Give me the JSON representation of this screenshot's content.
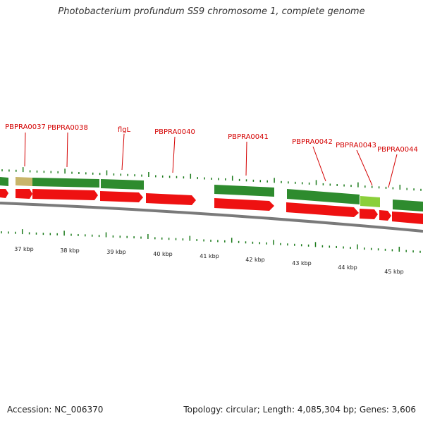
{
  "title": "Photobacterium profundum SS9 chromosome 1, complete genome",
  "footer": {
    "accession": "Accession: NC_006370",
    "summary": "Topology: circular; Length: 4,085,304 bp; Genes: 3,606"
  },
  "colors": {
    "gene_label": "#d40000",
    "feature_green": "#2e8b2e",
    "feature_red": "#ee1111",
    "backbone": "#888888",
    "tick": "#1a7a1a"
  },
  "gene_labels": [
    "PBPRA0037",
    "PBPRA0038",
    "flgL",
    "PBPRA0040",
    "PBPRA0041",
    "PBPRA0042",
    "PBPRA0043",
    "PBPRA0044"
  ],
  "kbp_labels": [
    "37 kbp",
    "38 kbp",
    "39 kbp",
    "40 kbp",
    "41 kbp",
    "42 kbp",
    "43 kbp",
    "44 kbp",
    "45 kbp"
  ]
}
